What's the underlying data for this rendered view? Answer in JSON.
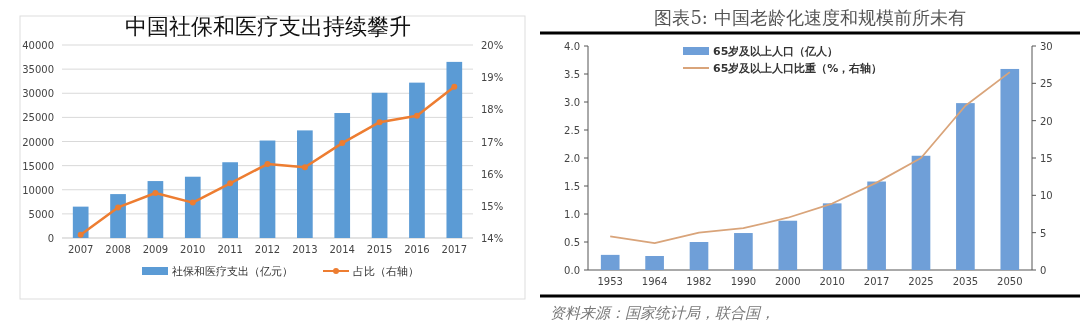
{
  "chart_data": [
    {
      "type": "bar",
      "title": "中国社保和医疗支出持续攀升",
      "categories": [
        "2007",
        "2008",
        "2009",
        "2010",
        "2011",
        "2012",
        "2013",
        "2014",
        "2015",
        "2016",
        "2017"
      ],
      "series": [
        {
          "name": "社保和医疗支出（亿元）",
          "color": "#5b9bd5",
          "values": [
            6500,
            9100,
            11800,
            12700,
            15700,
            20200,
            22300,
            25900,
            30100,
            32200,
            36500
          ]
        },
        {
          "name": "占比（右轴）",
          "type": "line",
          "axis": "y2",
          "color": "#ed7d31",
          "marker": "circle",
          "values": [
            14.1,
            14.95,
            15.4,
            15.1,
            15.7,
            16.3,
            16.2,
            16.95,
            17.6,
            17.8,
            18.7
          ]
        }
      ],
      "ylim": [
        0,
        40000
      ],
      "yticks": [
        0,
        5000,
        10000,
        15000,
        20000,
        25000,
        30000,
        35000,
        40000
      ],
      "y2lim": [
        14,
        20
      ],
      "y2ticks": [
        {
          "value": 14,
          "label": "14%"
        },
        {
          "value": 15,
          "label": "15%"
        },
        {
          "value": 16,
          "label": "16%"
        },
        {
          "value": 17,
          "label": "17%"
        },
        {
          "value": 18,
          "label": "18%"
        },
        {
          "value": 19,
          "label": "19%"
        },
        {
          "value": 20,
          "label": "20%"
        }
      ],
      "grid": "y",
      "legend": "bottom"
    },
    {
      "type": "bar",
      "title": "图表5:   中国老龄化速度和规模前所未有",
      "categories": [
        "1953",
        "1964",
        "1982",
        "1990",
        "2000",
        "2010",
        "2017",
        "2025",
        "2035",
        "2050"
      ],
      "series": [
        {
          "name": "65岁及以上人口（亿人）",
          "color": "#6f9fd8",
          "values": [
            0.27,
            0.25,
            0.5,
            0.66,
            0.88,
            1.19,
            1.58,
            2.04,
            2.98,
            3.59
          ]
        },
        {
          "name": "65岁及以上人口比重（%，右轴）",
          "type": "line",
          "axis": "y2",
          "color": "#d9a47a",
          "values": [
            4.5,
            3.6,
            5.0,
            5.6,
            7.0,
            8.9,
            11.7,
            15.0,
            22.0,
            26.5
          ]
        }
      ],
      "ylim": [
        0,
        4
      ],
      "yticks": [
        {
          "value": 0,
          "label": "0.0"
        },
        {
          "value": 0.5,
          "label": "0.5"
        },
        {
          "value": 1,
          "label": "1.0"
        },
        {
          "value": 1.5,
          "label": "1.5"
        },
        {
          "value": 2,
          "label": "2.0"
        },
        {
          "value": 2.5,
          "label": "2.5"
        },
        {
          "value": 3,
          "label": "3.0"
        },
        {
          "value": 3.5,
          "label": "3.5"
        },
        {
          "value": 4,
          "label": "4.0"
        }
      ],
      "y2lim": [
        0,
        30
      ],
      "y2ticks": [
        0,
        5,
        10,
        15,
        20,
        25,
        30
      ],
      "grid": false,
      "legend": "top left",
      "annotations": [
        "资料来源：国家统计局，联合国，"
      ]
    }
  ]
}
